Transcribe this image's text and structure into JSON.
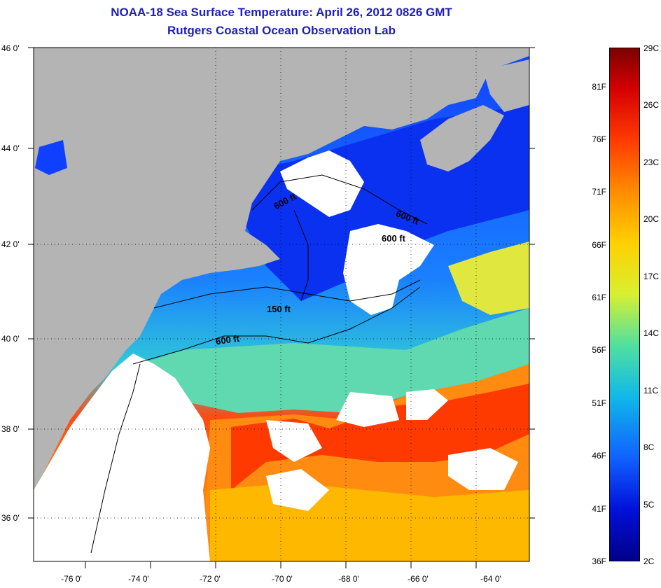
{
  "title_line1": "NOAA-18 Sea Surface Temperature:  April 26, 2012 0826 GMT",
  "title_line2": "Rutgers Coastal Ocean Observation Lab",
  "lat_labels": [
    "46 0'",
    "44 0'",
    "42 0'",
    "40 0'",
    "38 0'",
    "36 0'"
  ],
  "lon_labels": [
    "-76 0'",
    "-74 0'",
    "-72 0'",
    "-70 0'",
    "-68 0'",
    "-66 0'",
    "-64 0'"
  ],
  "contour_labels": [
    {
      "text": "600 ft",
      "key": "c1"
    },
    {
      "text": "600 ft",
      "key": "c2"
    },
    {
      "text": "600 ft",
      "key": "c3"
    },
    {
      "text": "150 ft",
      "key": "c4"
    },
    {
      "text": "600 ft",
      "key": "c5"
    }
  ],
  "colorbar": {
    "fahrenheit": [
      "81F",
      "76F",
      "71F",
      "66F",
      "61F",
      "56F",
      "51F",
      "46F",
      "41F",
      "36F"
    ],
    "celsius": [
      "29C",
      "26C",
      "23C",
      "20C",
      "17C",
      "14C",
      "11C",
      "8C",
      "5C",
      "2C"
    ],
    "colors": [
      "#7a0000",
      "#d40000",
      "#ff3a00",
      "#ff8c00",
      "#ffd000",
      "#d8f030",
      "#50e0a0",
      "#10b8e8",
      "#1060ff",
      "#0010d8",
      "#000088"
    ]
  },
  "colors": {
    "land": "#b4b4b4",
    "cloud": "#ffffff",
    "title": "#1f1fb8"
  }
}
